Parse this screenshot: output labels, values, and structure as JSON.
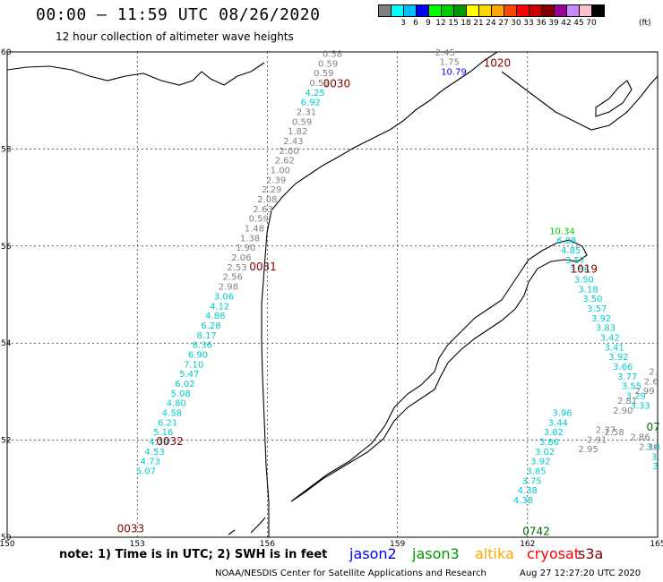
{
  "header": {
    "title": "00:00 – 11:59 UTC 08/26/2020",
    "subtitle": "12 hour collection of altimeter wave heights"
  },
  "legend": {
    "unit": "(ft)",
    "swatches": [
      {
        "color": "#808080",
        "label": ""
      },
      {
        "color": "#00ffff",
        "label": "3"
      },
      {
        "color": "#00bfff",
        "label": "6"
      },
      {
        "color": "#0000ff",
        "label": "9"
      },
      {
        "color": "#00ff00",
        "label": "12"
      },
      {
        "color": "#00cc00",
        "label": "15"
      },
      {
        "color": "#009900",
        "label": "18"
      },
      {
        "color": "#ffff00",
        "label": "21"
      },
      {
        "color": "#ffd700",
        "label": "24"
      },
      {
        "color": "#ffa500",
        "label": "27"
      },
      {
        "color": "#ff4500",
        "label": "30"
      },
      {
        "color": "#ff0000",
        "label": "33"
      },
      {
        "color": "#cc0000",
        "label": "36"
      },
      {
        "color": "#800000",
        "label": "39"
      },
      {
        "color": "#990099",
        "label": "42"
      },
      {
        "color": "#cc88ff",
        "label": "45"
      },
      {
        "color": "#ffc0cb",
        "label": "70"
      },
      {
        "color": "#000000",
        "label": ""
      }
    ]
  },
  "axes": {
    "lon_labels": [
      "150",
      "153",
      "156",
      "159",
      "162",
      "165"
    ],
    "lat_labels": [
      "60",
      "58",
      "56",
      "54",
      "52",
      "50"
    ]
  },
  "time_labels": [
    {
      "text": "0030",
      "lon": 157.6,
      "lat": 59.27
    },
    {
      "text": "1020",
      "lon": 161.3,
      "lat": 59.7
    },
    {
      "text": "0031",
      "lon": 155.9,
      "lat": 55.5
    },
    {
      "text": "1019",
      "lon": 163.3,
      "lat": 55.45
    },
    {
      "text": "0032",
      "lon": 153.75,
      "lat": 51.9
    },
    {
      "text": "0033",
      "lon": 152.85,
      "lat": 50.1
    },
    {
      "text": "0742",
      "lon": 162.2,
      "lat": 50.05
    },
    {
      "text": "07",
      "lon": 164.9,
      "lat": 52.2
    }
  ],
  "tracks": [
    {
      "name": "track-a-upper",
      "points": [
        {
          "v": "0.58",
          "lon": 157.5,
          "lat": 59.9,
          "c": "#808080"
        },
        {
          "v": "0.59",
          "lon": 157.4,
          "lat": 59.7,
          "c": "#808080"
        },
        {
          "v": "0.59",
          "lon": 157.3,
          "lat": 59.5,
          "c": "#808080"
        },
        {
          "v": "0.59",
          "lon": 157.2,
          "lat": 59.3,
          "c": "#808080"
        },
        {
          "v": "4.25",
          "lon": 157.1,
          "lat": 59.1,
          "c": "#00cccc"
        },
        {
          "v": "6.92",
          "lon": 157.0,
          "lat": 58.9,
          "c": "#00cccc"
        },
        {
          "v": "2.31",
          "lon": 156.9,
          "lat": 58.7,
          "c": "#808080"
        },
        {
          "v": "0.59",
          "lon": 156.8,
          "lat": 58.5,
          "c": "#808080"
        },
        {
          "v": "1.82",
          "lon": 156.7,
          "lat": 58.3,
          "c": "#808080"
        },
        {
          "v": "2.43",
          "lon": 156.6,
          "lat": 58.1,
          "c": "#808080"
        },
        {
          "v": "2.00",
          "lon": 156.5,
          "lat": 57.9,
          "c": "#808080"
        },
        {
          "v": "2.62",
          "lon": 156.4,
          "lat": 57.7,
          "c": "#808080"
        },
        {
          "v": "1.00",
          "lon": 156.3,
          "lat": 57.5,
          "c": "#808080"
        },
        {
          "v": "2.39",
          "lon": 156.2,
          "lat": 57.3,
          "c": "#808080"
        },
        {
          "v": "2.29",
          "lon": 156.1,
          "lat": 57.1,
          "c": "#808080"
        },
        {
          "v": "2.08",
          "lon": 156.0,
          "lat": 56.9,
          "c": "#808080"
        },
        {
          "v": "2.63",
          "lon": 155.9,
          "lat": 56.7,
          "c": "#808080"
        },
        {
          "v": "0.59",
          "lon": 155.8,
          "lat": 56.5,
          "c": "#808080"
        },
        {
          "v": "1.48",
          "lon": 155.7,
          "lat": 56.3,
          "c": "#808080"
        },
        {
          "v": "1.38",
          "lon": 155.6,
          "lat": 56.1,
          "c": "#808080"
        },
        {
          "v": "1.90",
          "lon": 155.5,
          "lat": 55.9,
          "c": "#808080"
        },
        {
          "v": "2.06",
          "lon": 155.4,
          "lat": 55.7,
          "c": "#808080"
        },
        {
          "v": "2.53",
          "lon": 155.3,
          "lat": 55.5,
          "c": "#808080"
        },
        {
          "v": "2.56",
          "lon": 155.2,
          "lat": 55.3,
          "c": "#808080"
        },
        {
          "v": "2.98",
          "lon": 155.1,
          "lat": 55.1,
          "c": "#808080"
        },
        {
          "v": "3.06",
          "lon": 155.0,
          "lat": 54.9,
          "c": "#00cccc"
        },
        {
          "v": "4.12",
          "lon": 154.9,
          "lat": 54.7,
          "c": "#00cccc"
        },
        {
          "v": "4.88",
          "lon": 154.8,
          "lat": 54.5,
          "c": "#00cccc"
        },
        {
          "v": "6.28",
          "lon": 154.7,
          "lat": 54.3,
          "c": "#00cccc"
        },
        {
          "v": "8.17",
          "lon": 154.6,
          "lat": 54.1,
          "c": "#00cccc"
        },
        {
          "v": "8.36",
          "lon": 154.5,
          "lat": 53.9,
          "c": "#00cccc"
        },
        {
          "v": "6.90",
          "lon": 154.4,
          "lat": 53.7,
          "c": "#00cccc"
        },
        {
          "v": "7.10",
          "lon": 154.3,
          "lat": 53.5,
          "c": "#00cccc"
        },
        {
          "v": "5.47",
          "lon": 154.2,
          "lat": 53.3,
          "c": "#00cccc"
        },
        {
          "v": "6.02",
          "lon": 154.1,
          "lat": 53.1,
          "c": "#00cccc"
        },
        {
          "v": "5.08",
          "lon": 154.0,
          "lat": 52.9,
          "c": "#00cccc"
        },
        {
          "v": "4.80",
          "lon": 153.9,
          "lat": 52.7,
          "c": "#00cccc"
        },
        {
          "v": "4.58",
          "lon": 153.8,
          "lat": 52.5,
          "c": "#00cccc"
        },
        {
          "v": "6.21",
          "lon": 153.7,
          "lat": 52.3,
          "c": "#00cccc"
        },
        {
          "v": "5.16",
          "lon": 153.6,
          "lat": 52.1,
          "c": "#00cccc"
        },
        {
          "v": "4.39",
          "lon": 153.5,
          "lat": 51.9,
          "c": "#00cccc"
        },
        {
          "v": "4.53",
          "lon": 153.4,
          "lat": 51.7,
          "c": "#00cccc"
        },
        {
          "v": "4.73",
          "lon": 153.3,
          "lat": 51.5,
          "c": "#00cccc"
        },
        {
          "v": "5.07",
          "lon": 153.2,
          "lat": 51.3,
          "c": "#00cccc"
        }
      ]
    },
    {
      "name": "track-b-top",
      "points": [
        {
          "v": "2.45",
          "lon": 160.1,
          "lat": 59.93,
          "c": "#808080"
        },
        {
          "v": "1.75",
          "lon": 160.2,
          "lat": 59.73,
          "c": "#808080"
        },
        {
          "v": "10.79",
          "lon": 160.3,
          "lat": 59.53,
          "c": "#0000ff"
        }
      ]
    },
    {
      "name": "track-c-east",
      "points": [
        {
          "v": "10.34",
          "lon": 162.8,
          "lat": 56.25,
          "c": "#00cc00"
        },
        {
          "v": "6.08",
          "lon": 162.9,
          "lat": 56.05,
          "c": "#00cccc"
        },
        {
          "v": "4.85",
          "lon": 163.0,
          "lat": 55.85,
          "c": "#00cccc"
        },
        {
          "v": "3.57",
          "lon": 163.1,
          "lat": 55.65,
          "c": "#00cccc"
        },
        {
          "v": "3.56",
          "lon": 163.2,
          "lat": 55.45,
          "c": "#00cccc"
        },
        {
          "v": "3.50",
          "lon": 163.3,
          "lat": 55.25,
          "c": "#00cccc"
        },
        {
          "v": "3.18",
          "lon": 163.4,
          "lat": 55.05,
          "c": "#00cccc"
        },
        {
          "v": "3.50",
          "lon": 163.5,
          "lat": 54.85,
          "c": "#00cccc"
        },
        {
          "v": "3.57",
          "lon": 163.6,
          "lat": 54.65,
          "c": "#00cccc"
        },
        {
          "v": "3.92",
          "lon": 163.7,
          "lat": 54.45,
          "c": "#00cccc"
        },
        {
          "v": "3.83",
          "lon": 163.8,
          "lat": 54.25,
          "c": "#00cccc"
        },
        {
          "v": "3.42",
          "lon": 163.9,
          "lat": 54.05,
          "c": "#00cccc"
        },
        {
          "v": "3.41",
          "lon": 164.0,
          "lat": 53.85,
          "c": "#00cccc"
        },
        {
          "v": "3.92",
          "lon": 164.1,
          "lat": 53.65,
          "c": "#00cccc"
        },
        {
          "v": "3.66",
          "lon": 164.2,
          "lat": 53.45,
          "c": "#00cccc"
        },
        {
          "v": "3.77",
          "lon": 164.3,
          "lat": 53.25,
          "c": "#00cccc"
        },
        {
          "v": "3.55",
          "lon": 164.4,
          "lat": 53.05,
          "c": "#00cccc"
        },
        {
          "v": "3.29",
          "lon": 164.5,
          "lat": 52.85,
          "c": "#00cccc"
        },
        {
          "v": "3.33",
          "lon": 164.6,
          "lat": 52.65,
          "c": "#00cccc"
        },
        {
          "v": "3.4",
          "lon": 164.9,
          "lat": 51.8,
          "c": "#00cccc"
        },
        {
          "v": "3.",
          "lon": 164.95,
          "lat": 51.6,
          "c": "#00cccc"
        },
        {
          "v": "3",
          "lon": 164.95,
          "lat": 51.4,
          "c": "#00cccc"
        }
      ]
    },
    {
      "name": "track-d-south",
      "points": [
        {
          "v": "3.96",
          "lon": 162.8,
          "lat": 52.5,
          "c": "#00cccc"
        },
        {
          "v": "3.44",
          "lon": 162.7,
          "lat": 52.3,
          "c": "#00cccc"
        },
        {
          "v": "3.82",
          "lon": 162.6,
          "lat": 52.1,
          "c": "#00cccc"
        },
        {
          "v": "3.86",
          "lon": 162.5,
          "lat": 51.9,
          "c": "#00cccc"
        },
        {
          "v": "3.02",
          "lon": 162.4,
          "lat": 51.7,
          "c": "#00cccc"
        },
        {
          "v": "3.92",
          "lon": 162.3,
          "lat": 51.5,
          "c": "#00cccc"
        },
        {
          "v": "3.85",
          "lon": 162.2,
          "lat": 51.3,
          "c": "#00cccc"
        },
        {
          "v": "3.75",
          "lon": 162.1,
          "lat": 51.1,
          "c": "#00cccc"
        },
        {
          "v": "4.38",
          "lon": 162.0,
          "lat": 50.9,
          "c": "#00cccc"
        },
        {
          "v": "4.38",
          "lon": 161.9,
          "lat": 50.7,
          "c": "#00cccc"
        }
      ]
    },
    {
      "name": "track-e-gray",
      "points": [
        {
          "v": "2.95",
          "lon": 163.4,
          "lat": 51.75,
          "c": "#808080"
        },
        {
          "v": "2.91",
          "lon": 163.6,
          "lat": 51.95,
          "c": "#808080"
        },
        {
          "v": "2.77",
          "lon": 163.8,
          "lat": 52.15,
          "c": "#808080"
        },
        {
          "v": "2.58",
          "lon": 164.0,
          "lat": 52.1,
          "c": "#808080"
        },
        {
          "v": "2.90",
          "lon": 164.2,
          "lat": 52.55,
          "c": "#808080"
        },
        {
          "v": "2.81",
          "lon": 164.3,
          "lat": 52.75,
          "c": "#808080"
        },
        {
          "v": "2.99",
          "lon": 164.7,
          "lat": 52.95,
          "c": "#808080"
        },
        {
          "v": "2.6",
          "lon": 164.85,
          "lat": 53.15,
          "c": "#808080"
        },
        {
          "v": "2.",
          "lon": 164.9,
          "lat": 53.35,
          "c": "#808080"
        },
        {
          "v": "2.86",
          "lon": 164.6,
          "lat": 52.0,
          "c": "#808080"
        },
        {
          "v": "2.36",
          "lon": 164.8,
          "lat": 51.8,
          "c": "#808080"
        }
      ]
    }
  ],
  "footer": {
    "note": "note: 1) Time is in UTC; 2) SWH is in feet",
    "satellites": [
      {
        "name": "jason2",
        "color": "#0000ff"
      },
      {
        "name": "jason3",
        "color": "#009900"
      },
      {
        "name": "altika",
        "color": "#ffa500"
      },
      {
        "name": "cryosat",
        "color": "#ff0000"
      },
      {
        "name": "s3a",
        "color": "#800000"
      }
    ],
    "credit": "NOAA/NESDIS Center for Satellite Applications and Research",
    "timestamp": "Aug 27 12:27:20 UTC 2020"
  }
}
